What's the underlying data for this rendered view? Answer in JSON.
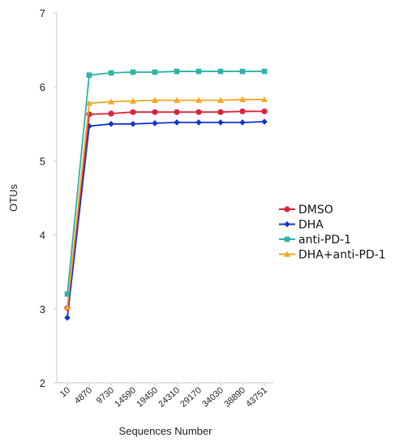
{
  "chart_data": {
    "type": "line",
    "title": "",
    "xlabel": "Sequences Number",
    "ylabel": "OTUs",
    "categories": [
      "10",
      "4870",
      "9730",
      "14590",
      "19450",
      "24310",
      "29170",
      "34030",
      "38890",
      "43751"
    ],
    "ylim": [
      2,
      7
    ],
    "yticks": [
      "2",
      "3",
      "4",
      "5",
      "6",
      "7"
    ],
    "grid": false,
    "legend_position": "right",
    "series": [
      {
        "name": "DMSO",
        "color": "#d9253c",
        "marker": "circle",
        "values": [
          3.01,
          5.63,
          5.64,
          5.66,
          5.66,
          5.66,
          5.66,
          5.66,
          5.67,
          5.67
        ]
      },
      {
        "name": "DHA",
        "color": "#1733c8",
        "marker": "diamond",
        "values": [
          2.88,
          5.47,
          5.5,
          5.5,
          5.51,
          5.52,
          5.52,
          5.52,
          5.52,
          5.53
        ]
      },
      {
        "name": "anti-PD-1",
        "color": "#2bb3a8",
        "marker": "square",
        "values": [
          3.2,
          6.16,
          6.19,
          6.2,
          6.2,
          6.21,
          6.21,
          6.21,
          6.21,
          6.21
        ]
      },
      {
        "name": "DHA+anti-PD-1",
        "color": "#f5a623",
        "marker": "triangle",
        "values": [
          3.02,
          5.78,
          5.8,
          5.81,
          5.82,
          5.82,
          5.82,
          5.82,
          5.83,
          5.83
        ]
      }
    ]
  }
}
